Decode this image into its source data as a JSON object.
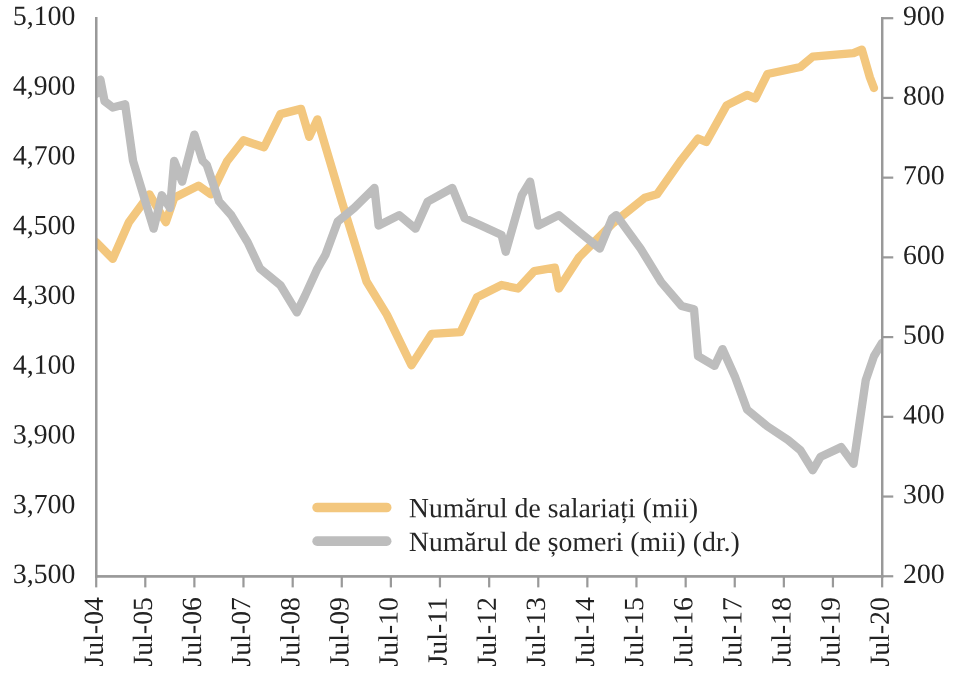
{
  "chart_data": {
    "type": "line",
    "xlim": [
      "2004-07",
      "2020-07"
    ],
    "xticks": [
      {
        "value": "2004-07",
        "label": "Jul-04"
      },
      {
        "value": "2005-07",
        "label": "Jul-05"
      },
      {
        "value": "2006-07",
        "label": "Jul-06"
      },
      {
        "value": "2007-07",
        "label": "Jul-07"
      },
      {
        "value": "2008-07",
        "label": "Jul-08"
      },
      {
        "value": "2009-07",
        "label": "Jul-09"
      },
      {
        "value": "2010-07",
        "label": "Jul-10"
      },
      {
        "value": "2011-07",
        "label": "Jul-11"
      },
      {
        "value": "2012-07",
        "label": "Jul-12"
      },
      {
        "value": "2013-07",
        "label": "Jul-13"
      },
      {
        "value": "2014-07",
        "label": "Jul-14"
      },
      {
        "value": "2015-07",
        "label": "Jul-15"
      },
      {
        "value": "2016-07",
        "label": "Jul-16"
      },
      {
        "value": "2017-07",
        "label": "Jul-17"
      },
      {
        "value": "2018-07",
        "label": "Jul-18"
      },
      {
        "value": "2019-07",
        "label": "Jul-19"
      },
      {
        "value": "2020-07",
        "label": "Jul-20"
      }
    ],
    "ylim": [
      3500,
      5100
    ],
    "yticks": [
      {
        "value": 3500,
        "label": "3,500"
      },
      {
        "value": 3700,
        "label": "3,700"
      },
      {
        "value": 3900,
        "label": "3,900"
      },
      {
        "value": 4100,
        "label": "4,100"
      },
      {
        "value": 4300,
        "label": "4,300"
      },
      {
        "value": 4500,
        "label": "4,500"
      },
      {
        "value": 4700,
        "label": "4,700"
      },
      {
        "value": 4900,
        "label": "4,900"
      },
      {
        "value": 5100,
        "label": "5,100"
      }
    ],
    "y2lim": [
      200,
      900
    ],
    "y2ticks": [
      200,
      300,
      400,
      500,
      600,
      700,
      800,
      900
    ],
    "grid": false,
    "legend": "bottom",
    "marker": "none",
    "line_style": "solid",
    "series": [
      {
        "name": "Numărul de salariați (mii)",
        "color": "#f3c77e",
        "x": [
          "2004-07",
          "2004-11",
          "2005-03",
          "2005-08",
          "2005-12",
          "2006-02",
          "2006-08",
          "2006-11",
          "2007-03",
          "2007-07",
          "2007-12",
          "2008-04",
          "2008-09",
          "2008-11",
          "2009-01",
          "2009-07",
          "2010-01",
          "2010-06",
          "2010-12",
          "2011-05",
          "2011-12",
          "2012-04",
          "2012-10",
          "2013-02",
          "2013-06",
          "2013-11",
          "2013-12",
          "2014-05",
          "2015-01",
          "2015-09",
          "2015-12",
          "2016-06",
          "2016-10",
          "2016-12",
          "2017-05",
          "2017-10",
          "2017-12",
          "2018-03",
          "2018-11",
          "2019-02",
          "2019-12",
          "2020-02",
          "2020-04",
          "2020-05"
        ],
        "values": [
          4458,
          4410,
          4515,
          4595,
          4515,
          4585,
          4620,
          4595,
          4690,
          4750,
          4730,
          4825,
          4840,
          4760,
          4810,
          4575,
          4345,
          4250,
          4105,
          4195,
          4200,
          4300,
          4335,
          4325,
          4375,
          4385,
          4325,
          4415,
          4510,
          4585,
          4595,
          4695,
          4755,
          4745,
          4850,
          4880,
          4870,
          4940,
          4960,
          4990,
          5000,
          5010,
          4930,
          4900
        ]
      },
      {
        "name": "Numărul de șomeri (mii) (dr.)",
        "color": "#bdbdbd",
        "axis": "y2",
        "x": [
          "2004-07",
          "2004-08",
          "2004-09",
          "2004-11",
          "2005-02",
          "2005-04",
          "2005-06",
          "2005-09",
          "2005-11",
          "2006-01",
          "2006-02",
          "2006-04",
          "2006-07",
          "2006-09",
          "2006-10",
          "2007-01",
          "2007-04",
          "2007-08",
          "2007-11",
          "2008-04",
          "2008-08",
          "2008-10",
          "2009-01",
          "2009-03",
          "2009-06",
          "2009-10",
          "2010-03",
          "2010-04",
          "2010-09",
          "2011-01",
          "2011-04",
          "2011-10",
          "2012-01",
          "2012-05",
          "2012-10",
          "2012-11",
          "2013-03",
          "2013-05",
          "2013-07",
          "2013-12",
          "2014-05",
          "2014-10",
          "2015-01",
          "2015-02",
          "2015-08",
          "2016-01",
          "2016-06",
          "2016-09",
          "2016-10",
          "2017-02",
          "2017-04",
          "2017-07",
          "2017-10",
          "2018-03",
          "2018-08",
          "2018-11",
          "2019-02",
          "2019-04",
          "2019-09",
          "2019-12",
          "2020-03",
          "2020-05",
          "2020-07"
        ],
        "values": [
          805,
          823,
          796,
          788,
          792,
          721,
          687,
          636,
          678,
          662,
          721,
          695,
          754,
          721,
          716,
          670,
          653,
          619,
          586,
          565,
          531,
          552,
          586,
          603,
          645,
          662,
          687,
          640,
          653,
          636,
          670,
          687,
          649,
          640,
          628,
          607,
          678,
          695,
          640,
          653,
          632,
          611,
          649,
          653,
          611,
          569,
          539,
          535,
          476,
          464,
          485,
          451,
          409,
          388,
          371,
          358,
          333,
          350,
          362,
          341,
          446,
          476,
          493
        ]
      }
    ]
  }
}
